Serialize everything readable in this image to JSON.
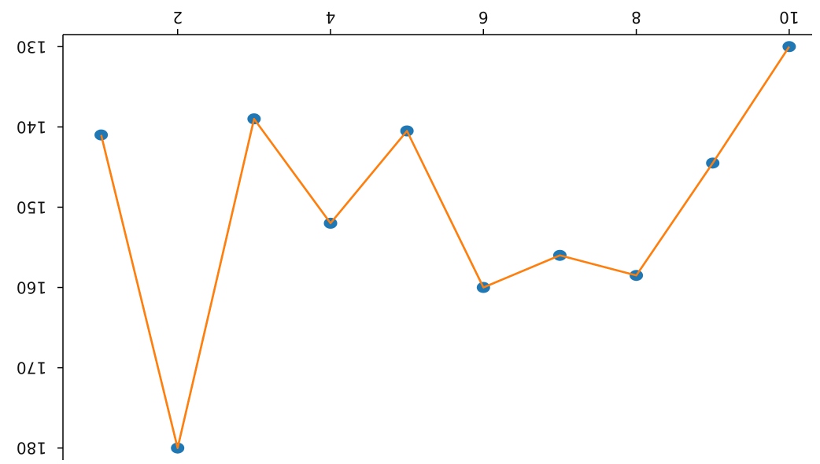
{
  "chart_data": {
    "type": "line",
    "title": "",
    "xlabel": "",
    "ylabel": "",
    "x": [
      1,
      2,
      3,
      4,
      5,
      6,
      7,
      8,
      9,
      10
    ],
    "series": [
      {
        "values": [
          141,
          180,
          139,
          152,
          140.5,
          160,
          156,
          158.5,
          144.5,
          130
        ],
        "marker_color": "#1f77b4",
        "line_color": "#ff7f0e"
      }
    ],
    "xlim": [
      0.5,
      10.3
    ],
    "ylim": [
      181.5,
      128.5
    ],
    "x_ticks": [
      2,
      4,
      6,
      8,
      10
    ],
    "x_tick_labels": [
      "2",
      "4",
      "6",
      "8",
      "10"
    ],
    "y_ticks": [
      130,
      140,
      150,
      160,
      170,
      180
    ],
    "y_tick_labels": [
      "130",
      "140",
      "150",
      "160",
      "170",
      "180"
    ],
    "x_axis_position": "top",
    "y_axis": "inverted",
    "rendering": "mirrored-upside-down",
    "grid": false,
    "legend": "none"
  }
}
